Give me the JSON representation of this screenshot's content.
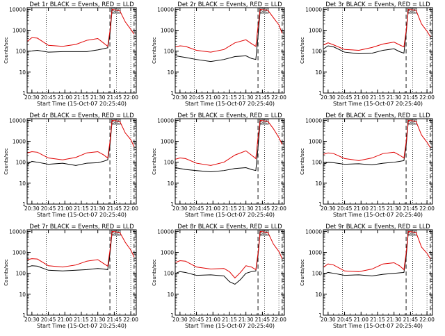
{
  "colors": {
    "events": "#000000",
    "lld": "#e00000",
    "background": "#ffffff"
  },
  "shared": {
    "xlabel": "Start Time (15-Oct-07 20:25:40)",
    "ylabel": "Counts/sec",
    "x_tick_labels": [
      "20:30",
      "20:45",
      "21:00",
      "21:15",
      "21:30",
      "21:45",
      "22:00"
    ],
    "y_tick_labels": [
      "1",
      "10",
      "100",
      "1000",
      "10000"
    ],
    "flag_labels": [
      "S",
      "E"
    ]
  },
  "chart_data": [
    {
      "type": "line",
      "title": "Det 1r BLACK = Events, RED = LLD",
      "xlim": [
        "20:25:40",
        "22:05:00"
      ],
      "ylim": [
        1,
        12000
      ],
      "y_scale": "log",
      "xlabel": "Start Time (15-Oct-07 20:25:40)",
      "ylabel": "Counts/sec",
      "series": [
        {
          "name": "Events",
          "x": [
            "20:26",
            "20:30",
            "20:35",
            "20:45",
            "20:58",
            "21:10",
            "21:20",
            "21:30",
            "21:35",
            "21:39",
            "21:41",
            "21:43"
          ],
          "values": [
            100,
            102,
            110,
            90,
            95,
            95,
            95,
            115,
            130,
            145,
            600,
            9000
          ]
        },
        {
          "name": "LLD",
          "x": [
            "20:26",
            "20:30",
            "20:35",
            "20:45",
            "20:58",
            "21:10",
            "21:20",
            "21:30",
            "21:35",
            "21:39",
            "21:41",
            "21:43",
            "21:50",
            "21:55",
            "22:00",
            "22:03"
          ],
          "values": [
            300,
            440,
            420,
            190,
            170,
            210,
            330,
            400,
            250,
            170,
            900,
            10000,
            8500,
            2500,
            1100,
            650
          ]
        }
      ],
      "vlines_dotted": [
        "20:43",
        "21:47",
        "22:00"
      ],
      "vlines_dashed": [
        "21:41",
        "22:03"
      ]
    },
    {
      "type": "line",
      "title": "Det 2r BLACK = Events, RED = LLD",
      "xlim": [
        "20:25:40",
        "22:05:00"
      ],
      "ylim": [
        1,
        12000
      ],
      "y_scale": "log",
      "xlabel": "Start Time (15-Oct-07 20:25:40)",
      "ylabel": "Counts/sec",
      "series": [
        {
          "name": "Events",
          "x": [
            "20:26",
            "20:30",
            "20:35",
            "20:45",
            "20:58",
            "21:10",
            "21:20",
            "21:30",
            "21:35",
            "21:39",
            "21:41",
            "21:43"
          ],
          "values": [
            60,
            55,
            50,
            40,
            32,
            40,
            55,
            60,
            45,
            40,
            500,
            9000
          ]
        },
        {
          "name": "LLD",
          "x": [
            "20:26",
            "20:30",
            "20:35",
            "20:45",
            "20:58",
            "21:10",
            "21:20",
            "21:30",
            "21:35",
            "21:39",
            "21:41",
            "21:43",
            "21:50",
            "21:55",
            "22:00",
            "22:03"
          ],
          "values": [
            160,
            180,
            170,
            110,
            90,
            120,
            250,
            350,
            230,
            170,
            1500,
            10000,
            9000,
            4000,
            1800,
            700
          ]
        }
      ],
      "vlines_dotted": [
        "20:43",
        "21:47",
        "22:00"
      ],
      "vlines_dashed": [
        "21:41",
        "22:03"
      ]
    },
    {
      "type": "line",
      "title": "Det 3r BLACK = Events, RED = LLD",
      "xlim": [
        "20:25:40",
        "22:05:00"
      ],
      "ylim": [
        1,
        12000
      ],
      "y_scale": "log",
      "xlabel": "Start Time (15-Oct-07 20:25:40)",
      "ylabel": "Counts/sec",
      "series": [
        {
          "name": "Events",
          "x": [
            "20:26",
            "20:30",
            "20:35",
            "20:45",
            "20:58",
            "21:10",
            "21:20",
            "21:30",
            "21:35",
            "21:39",
            "21:41",
            "21:43"
          ],
          "values": [
            130,
            180,
            160,
            90,
            75,
            80,
            110,
            130,
            95,
            80,
            700,
            9000
          ]
        },
        {
          "name": "LLD",
          "x": [
            "20:26",
            "20:30",
            "20:35",
            "20:45",
            "20:58",
            "21:10",
            "21:20",
            "21:30",
            "21:35",
            "21:39",
            "21:41",
            "21:43",
            "21:50",
            "21:55",
            "22:00",
            "22:03"
          ],
          "values": [
            200,
            250,
            200,
            120,
            110,
            150,
            220,
            270,
            200,
            160,
            900,
            10000,
            9000,
            2000,
            900,
            500
          ]
        }
      ],
      "vlines_dotted": [
        "20:43",
        "21:47",
        "22:00"
      ],
      "vlines_dashed": [
        "21:41",
        "22:03"
      ]
    },
    {
      "type": "line",
      "title": "Det 4r BLACK = Events, RED = LLD",
      "xlim": [
        "20:25:40",
        "22:05:00"
      ],
      "ylim": [
        1,
        12000
      ],
      "y_scale": "log",
      "xlabel": "Start Time (15-Oct-07 20:25:40)",
      "ylabel": "Counts/sec",
      "series": [
        {
          "name": "Events",
          "x": [
            "20:26",
            "20:30",
            "20:35",
            "20:45",
            "20:58",
            "21:10",
            "21:20",
            "21:30",
            "21:35",
            "21:39",
            "21:41",
            "21:43"
          ],
          "values": [
            80,
            110,
            100,
            80,
            90,
            70,
            90,
            95,
            110,
            130,
            600,
            9000
          ]
        },
        {
          "name": "LLD",
          "x": [
            "20:26",
            "20:30",
            "20:35",
            "20:45",
            "20:58",
            "21:10",
            "21:20",
            "21:30",
            "21:35",
            "21:39",
            "21:41",
            "21:43",
            "21:50",
            "21:55",
            "22:00",
            "22:03"
          ],
          "values": [
            280,
            320,
            300,
            160,
            130,
            170,
            280,
            320,
            230,
            160,
            900,
            10000,
            9000,
            2500,
            1200,
            550
          ]
        }
      ],
      "vlines_dotted": [
        "20:43",
        "21:47",
        "22:00"
      ],
      "vlines_dashed": [
        "21:41",
        "22:03"
      ]
    },
    {
      "type": "line",
      "title": "Det 5r BLACK = Events, RED = LLD",
      "xlim": [
        "20:25:40",
        "22:05:00"
      ],
      "ylim": [
        1,
        12000
      ],
      "y_scale": "log",
      "xlabel": "Start Time (15-Oct-07 20:25:40)",
      "ylabel": "Counts/sec",
      "series": [
        {
          "name": "Events",
          "x": [
            "20:26",
            "20:30",
            "20:35",
            "20:45",
            "20:58",
            "21:10",
            "21:20",
            "21:30",
            "21:35",
            "21:39",
            "21:41",
            "21:43"
          ],
          "values": [
            55,
            50,
            45,
            40,
            35,
            40,
            50,
            55,
            45,
            40,
            500,
            9000
          ]
        },
        {
          "name": "LLD",
          "x": [
            "20:26",
            "20:30",
            "20:35",
            "20:45",
            "20:58",
            "21:10",
            "21:20",
            "21:30",
            "21:35",
            "21:39",
            "21:41",
            "21:43",
            "21:50",
            "21:55",
            "22:00",
            "22:03"
          ],
          "values": [
            140,
            160,
            150,
            90,
            70,
            100,
            220,
            350,
            220,
            150,
            1500,
            10000,
            9000,
            4000,
            1500,
            700
          ]
        }
      ],
      "vlines_dotted": [
        "20:43",
        "21:47",
        "22:00"
      ],
      "vlines_dashed": [
        "21:41",
        "22:03"
      ]
    },
    {
      "type": "line",
      "title": "Det 6r BLACK = Events, RED = LLD",
      "xlim": [
        "20:25:40",
        "22:05:00"
      ],
      "ylim": [
        1,
        12000
      ],
      "y_scale": "log",
      "xlabel": "Start Time (15-Oct-07 20:25:40)",
      "ylabel": "Counts/sec",
      "series": [
        {
          "name": "Events",
          "x": [
            "20:26",
            "20:30",
            "20:35",
            "20:45",
            "20:58",
            "21:10",
            "21:20",
            "21:30",
            "21:35",
            "21:39",
            "21:41",
            "21:43"
          ],
          "values": [
            80,
            100,
            95,
            80,
            85,
            75,
            90,
            100,
            110,
            120,
            600,
            9000
          ]
        },
        {
          "name": "LLD",
          "x": [
            "20:26",
            "20:30",
            "20:35",
            "20:45",
            "20:58",
            "21:10",
            "21:20",
            "21:30",
            "21:35",
            "21:39",
            "21:41",
            "21:43",
            "21:50",
            "21:55",
            "22:00",
            "22:03"
          ],
          "values": [
            240,
            280,
            260,
            150,
            120,
            160,
            260,
            300,
            220,
            160,
            900,
            10000,
            9000,
            2000,
            900,
            500
          ]
        }
      ],
      "vlines_dotted": [
        "20:43",
        "21:47",
        "22:00"
      ],
      "vlines_dashed": [
        "21:41",
        "22:03"
      ]
    },
    {
      "type": "line",
      "title": "Det 7r BLACK = Events, RED = LLD",
      "xlim": [
        "20:25:40",
        "22:05:00"
      ],
      "ylim": [
        1,
        12000
      ],
      "y_scale": "log",
      "xlabel": "Start Time (15-Oct-07 20:25:40)",
      "ylabel": "Counts/sec",
      "series": [
        {
          "name": "Events",
          "x": [
            "20:26",
            "20:30",
            "20:35",
            "20:45",
            "20:58",
            "21:10",
            "21:20",
            "21:30",
            "21:35",
            "21:39",
            "21:41",
            "21:43"
          ],
          "values": [
            200,
            230,
            220,
            140,
            130,
            140,
            150,
            170,
            160,
            150,
            800,
            9000
          ]
        },
        {
          "name": "LLD",
          "x": [
            "20:26",
            "20:30",
            "20:35",
            "20:45",
            "20:58",
            "21:10",
            "21:20",
            "21:30",
            "21:35",
            "21:39",
            "21:41",
            "21:43",
            "21:50",
            "21:55",
            "22:00",
            "22:03"
          ],
          "values": [
            450,
            500,
            480,
            230,
            200,
            250,
            380,
            450,
            300,
            220,
            1200,
            10000,
            9000,
            3000,
            1300,
            600
          ]
        }
      ],
      "vlines_dotted": [
        "20:43",
        "21:47",
        "22:00"
      ],
      "vlines_dashed": [
        "21:41",
        "22:03"
      ]
    },
    {
      "type": "line",
      "title": "Det 8r BLACK = Events, RED = LLD",
      "xlim": [
        "20:25:40",
        "22:05:00"
      ],
      "ylim": [
        1,
        12000
      ],
      "y_scale": "log",
      "xlabel": "Start Time (15-Oct-07 20:25:40)",
      "ylabel": "Counts/sec",
      "series": [
        {
          "name": "Events",
          "x": [
            "20:26",
            "20:30",
            "20:35",
            "20:45",
            "20:58",
            "21:10",
            "21:15",
            "21:20",
            "21:25",
            "21:30",
            "21:35",
            "21:39",
            "21:41",
            "21:43"
          ],
          "values": [
            100,
            120,
            110,
            80,
            85,
            75,
            40,
            30,
            50,
            100,
            120,
            130,
            700,
            9000
          ]
        },
        {
          "name": "LLD",
          "x": [
            "20:26",
            "20:30",
            "20:35",
            "20:45",
            "20:58",
            "21:10",
            "21:15",
            "21:20",
            "21:25",
            "21:30",
            "21:35",
            "21:39",
            "21:41",
            "21:43",
            "21:50",
            "21:55",
            "22:00",
            "22:03"
          ],
          "values": [
            330,
            400,
            380,
            200,
            160,
            170,
            120,
            60,
            110,
            230,
            200,
            150,
            900,
            10000,
            9000,
            2500,
            1100,
            500
          ]
        }
      ],
      "vlines_dotted": [
        "20:43",
        "21:47",
        "22:00"
      ],
      "vlines_dashed": [
        "21:41",
        "22:03"
      ]
    },
    {
      "type": "line",
      "title": "Det 9r BLACK = Events, RED = LLD",
      "xlim": [
        "20:25:40",
        "22:05:00"
      ],
      "ylim": [
        1,
        12000
      ],
      "y_scale": "log",
      "xlabel": "Start Time (15-Oct-07 20:25:40)",
      "ylabel": "Counts/sec",
      "series": [
        {
          "name": "Events",
          "x": [
            "20:26",
            "20:30",
            "20:35",
            "20:45",
            "20:58",
            "21:10",
            "21:20",
            "21:30",
            "21:35",
            "21:39",
            "21:41",
            "21:43"
          ],
          "values": [
            90,
            110,
            100,
            80,
            85,
            75,
            90,
            100,
            105,
            110,
            600,
            9000
          ]
        },
        {
          "name": "LLD",
          "x": [
            "20:26",
            "20:30",
            "20:35",
            "20:45",
            "20:58",
            "21:10",
            "21:20",
            "21:30",
            "21:35",
            "21:39",
            "21:41",
            "21:43",
            "21:50",
            "21:55",
            "22:00",
            "22:03"
          ],
          "values": [
            200,
            280,
            250,
            130,
            120,
            160,
            280,
            320,
            230,
            150,
            900,
            10000,
            9000,
            1800,
            900,
            500
          ]
        }
      ],
      "vlines_dotted": [
        "20:43",
        "21:47",
        "22:00"
      ],
      "vlines_dashed": [
        "21:41",
        "22:03"
      ]
    }
  ]
}
